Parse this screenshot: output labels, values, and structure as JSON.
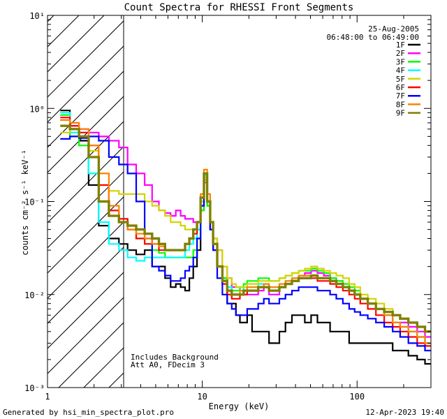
{
  "chart_data": {
    "type": "line",
    "title": "Count Spectra for RHESSI Front Segments",
    "xlabel": "Energy (keV)",
    "ylabel": "counts cm⁻² s⁻¹ keV⁻¹",
    "xscale": "log",
    "yscale": "log",
    "xlim": [
      1,
      300
    ],
    "ylim": [
      0.001,
      10
    ],
    "x_ticks": [
      {
        "value": 1,
        "label": "1"
      },
      {
        "value": 10,
        "label": "10"
      },
      {
        "value": 100,
        "label": "100"
      }
    ],
    "y_ticks": [
      {
        "value": 0.001,
        "label": "10⁻³"
      },
      {
        "value": 0.01,
        "label": "10⁻²"
      },
      {
        "value": 0.1,
        "label": "10⁻¹"
      },
      {
        "value": 1,
        "label": "10⁰"
      },
      {
        "value": 10,
        "label": "10¹"
      }
    ],
    "date": "25-Aug-2005",
    "time_range": "06:48:00 to 06:49:00",
    "hatched_region_keV": [
      1,
      3
    ],
    "annotations": [
      "Includes Background",
      "Att A0, FDecim 3"
    ],
    "footer_left": "Generated by hsi_min_spectra_plot.pro",
    "footer_right": "12-Apr-2023 19:40",
    "x": [
      1.3,
      1.5,
      1.7,
      2.0,
      2.3,
      2.7,
      3.1,
      3.5,
      4.0,
      4.5,
      5.0,
      5.5,
      6.0,
      6.5,
      7.0,
      7.5,
      8.0,
      8.5,
      9.0,
      9.5,
      10.0,
      10.5,
      11.0,
      11.5,
      12.0,
      13.0,
      14.0,
      15.0,
      16.0,
      17.0,
      18.0,
      19.0,
      20.0,
      22.0,
      24.0,
      26.0,
      28.0,
      30.0,
      33.0,
      36.0,
      40.0,
      44.0,
      48.0,
      53.0,
      58.0,
      64.0,
      70.0,
      77.0,
      85.0,
      93.0,
      100.0,
      110.0,
      125.0,
      140.0,
      160.0,
      180.0,
      200.0,
      230.0,
      260.0,
      290.0
    ],
    "series": [
      {
        "name": "1F",
        "color": "#000000",
        "values": [
          0.95,
          0.6,
          0.45,
          0.15,
          0.055,
          0.04,
          0.035,
          0.03,
          0.027,
          0.03,
          0.02,
          0.02,
          0.015,
          0.012,
          0.013,
          0.012,
          0.011,
          0.015,
          0.02,
          0.03,
          0.08,
          0.18,
          0.09,
          0.05,
          0.03,
          0.02,
          0.015,
          0.008,
          0.008,
          0.006,
          0.005,
          0.005,
          0.006,
          0.004,
          0.004,
          0.004,
          0.003,
          0.003,
          0.004,
          0.005,
          0.006,
          0.006,
          0.005,
          0.006,
          0.005,
          0.005,
          0.004,
          0.004,
          0.004,
          0.003,
          0.003,
          0.003,
          0.003,
          0.003,
          0.003,
          0.0025,
          0.0025,
          0.0022,
          0.002,
          0.0018
        ]
      },
      {
        "name": "2F",
        "color": "#ff00ff",
        "values": [
          0.75,
          0.65,
          0.6,
          0.55,
          0.5,
          0.45,
          0.38,
          0.25,
          0.2,
          0.15,
          0.1,
          0.08,
          0.075,
          0.07,
          0.08,
          0.07,
          0.065,
          0.065,
          0.06,
          0.06,
          0.09,
          0.16,
          0.1,
          0.06,
          0.04,
          0.03,
          0.02,
          0.015,
          0.012,
          0.012,
          0.011,
          0.01,
          0.01,
          0.01,
          0.011,
          0.012,
          0.01,
          0.01,
          0.012,
          0.013,
          0.014,
          0.016,
          0.017,
          0.018,
          0.017,
          0.016,
          0.015,
          0.014,
          0.012,
          0.011,
          0.01,
          0.009,
          0.008,
          0.007,
          0.006,
          0.005,
          0.005,
          0.0045,
          0.004,
          0.0035
        ]
      },
      {
        "name": "3F",
        "color": "#00ff00",
        "values": [
          0.85,
          0.5,
          0.4,
          0.2,
          0.1,
          0.07,
          0.06,
          0.05,
          0.04,
          0.035,
          0.03,
          0.028,
          0.025,
          0.025,
          0.025,
          0.025,
          0.025,
          0.025,
          0.03,
          0.04,
          0.08,
          0.17,
          0.09,
          0.05,
          0.03,
          0.02,
          0.015,
          0.012,
          0.011,
          0.011,
          0.012,
          0.013,
          0.014,
          0.014,
          0.015,
          0.015,
          0.014,
          0.014,
          0.015,
          0.016,
          0.017,
          0.018,
          0.018,
          0.019,
          0.018,
          0.017,
          0.015,
          0.014,
          0.013,
          0.012,
          0.011,
          0.009,
          0.008,
          0.007,
          0.006,
          0.005,
          0.0045,
          0.004,
          0.0035,
          0.003
        ]
      },
      {
        "name": "4F",
        "color": "#00ffff",
        "values": [
          0.9,
          0.55,
          0.5,
          0.2,
          0.06,
          0.035,
          0.03,
          0.025,
          0.023,
          0.025,
          0.025,
          0.025,
          0.025,
          0.025,
          0.025,
          0.025,
          0.03,
          0.035,
          0.04,
          0.05,
          0.1,
          0.19,
          0.1,
          0.05,
          0.03,
          0.02,
          0.014,
          0.012,
          0.01,
          0.01,
          0.011,
          0.012,
          0.012,
          0.012,
          0.013,
          0.013,
          0.012,
          0.012,
          0.013,
          0.014,
          0.015,
          0.016,
          0.016,
          0.016,
          0.015,
          0.015,
          0.014,
          0.013,
          0.012,
          0.011,
          0.01,
          0.009,
          0.008,
          0.007,
          0.006,
          0.005,
          0.0045,
          0.004,
          0.0035,
          0.003
        ]
      },
      {
        "name": "5F",
        "color": "#d4d400",
        "values": [
          0.55,
          0.6,
          0.5,
          0.35,
          0.15,
          0.13,
          0.12,
          0.12,
          0.12,
          0.1,
          0.09,
          0.08,
          0.07,
          0.06,
          0.06,
          0.055,
          0.05,
          0.05,
          0.05,
          0.06,
          0.1,
          0.18,
          0.1,
          0.06,
          0.04,
          0.03,
          0.02,
          0.015,
          0.013,
          0.012,
          0.012,
          0.012,
          0.013,
          0.013,
          0.014,
          0.014,
          0.014,
          0.014,
          0.015,
          0.016,
          0.017,
          0.018,
          0.019,
          0.02,
          0.019,
          0.018,
          0.017,
          0.016,
          0.015,
          0.013,
          0.012,
          0.01,
          0.009,
          0.008,
          0.007,
          0.006,
          0.0055,
          0.005,
          0.0045,
          0.004
        ]
      },
      {
        "name": "6F",
        "color": "#ff0000",
        "values": [
          0.8,
          0.65,
          0.55,
          0.4,
          0.15,
          0.08,
          0.065,
          0.05,
          0.04,
          0.035,
          0.035,
          0.03,
          0.03,
          0.03,
          0.03,
          0.03,
          0.035,
          0.04,
          0.045,
          0.06,
          0.11,
          0.2,
          0.1,
          0.05,
          0.03,
          0.02,
          0.013,
          0.01,
          0.009,
          0.009,
          0.01,
          0.01,
          0.011,
          0.011,
          0.012,
          0.012,
          0.011,
          0.011,
          0.012,
          0.013,
          0.014,
          0.015,
          0.015,
          0.015,
          0.014,
          0.014,
          0.013,
          0.012,
          0.011,
          0.01,
          0.009,
          0.008,
          0.007,
          0.006,
          0.005,
          0.0045,
          0.004,
          0.0035,
          0.003,
          0.0028
        ]
      },
      {
        "name": "7F",
        "color": "#0000ff",
        "values": [
          0.47,
          0.5,
          0.48,
          0.5,
          0.45,
          0.3,
          0.25,
          0.2,
          0.1,
          0.04,
          0.02,
          0.018,
          0.016,
          0.014,
          0.014,
          0.015,
          0.018,
          0.02,
          0.025,
          0.04,
          0.09,
          0.2,
          0.1,
          0.05,
          0.03,
          0.015,
          0.01,
          0.008,
          0.007,
          0.006,
          0.006,
          0.006,
          0.007,
          0.007,
          0.008,
          0.009,
          0.008,
          0.008,
          0.009,
          0.01,
          0.011,
          0.012,
          0.012,
          0.012,
          0.011,
          0.011,
          0.01,
          0.009,
          0.008,
          0.007,
          0.0065,
          0.006,
          0.0055,
          0.005,
          0.0045,
          0.004,
          0.0035,
          0.003,
          0.0028,
          0.0025
        ]
      },
      {
        "name": "8F",
        "color": "#ff8000",
        "values": [
          0.75,
          0.7,
          0.6,
          0.4,
          0.2,
          0.09,
          0.06,
          0.05,
          0.045,
          0.04,
          0.035,
          0.033,
          0.03,
          0.03,
          0.03,
          0.03,
          0.035,
          0.04,
          0.05,
          0.06,
          0.12,
          0.22,
          0.12,
          0.06,
          0.035,
          0.02,
          0.014,
          0.011,
          0.01,
          0.01,
          0.011,
          0.011,
          0.012,
          0.012,
          0.012,
          0.013,
          0.012,
          0.012,
          0.013,
          0.014,
          0.015,
          0.016,
          0.016,
          0.016,
          0.015,
          0.015,
          0.014,
          0.013,
          0.012,
          0.011,
          0.01,
          0.009,
          0.008,
          0.007,
          0.006,
          0.005,
          0.0045,
          0.004,
          0.0035,
          0.003
        ]
      },
      {
        "name": "9F",
        "color": "#808000",
        "values": [
          0.65,
          0.6,
          0.5,
          0.3,
          0.1,
          0.07,
          0.06,
          0.055,
          0.05,
          0.045,
          0.04,
          0.035,
          0.03,
          0.03,
          0.03,
          0.03,
          0.035,
          0.04,
          0.05,
          0.06,
          0.11,
          0.2,
          0.1,
          0.06,
          0.035,
          0.02,
          0.014,
          0.011,
          0.01,
          0.01,
          0.01,
          0.011,
          0.011,
          0.011,
          0.012,
          0.012,
          0.011,
          0.011,
          0.012,
          0.013,
          0.014,
          0.015,
          0.015,
          0.016,
          0.015,
          0.015,
          0.014,
          0.013,
          0.012,
          0.011,
          0.01,
          0.009,
          0.008,
          0.007,
          0.0065,
          0.006,
          0.0055,
          0.005,
          0.0045,
          0.004
        ]
      }
    ]
  }
}
